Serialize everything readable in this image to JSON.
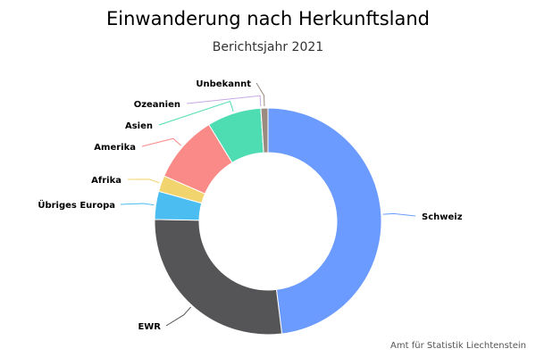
{
  "title": "Einwanderung nach Herkunftsland",
  "subtitle": "Berichtsjahr 2021",
  "source": "Amt für Statistik Liechtenstein",
  "chart_data": {
    "type": "pie",
    "donut": true,
    "title": "Einwanderung nach Herkunftsland",
    "subtitle": "Berichtsjahr 2021",
    "categories": [
      "Schweiz",
      "EWR",
      "Übriges Europa",
      "Afrika",
      "Amerika",
      "Asien",
      "Ozeanien",
      "Unbekannt"
    ],
    "values": [
      48.0,
      27.2,
      4.0,
      2.3,
      9.7,
      7.7,
      0.01,
      1.0
    ],
    "unit": "%",
    "colors": [
      "#6b9bff",
      "#555558",
      "#4cbdf0",
      "#f2d46e",
      "#fa8a87",
      "#4edcb3",
      "#c5a8e5",
      "#9a8a80"
    ],
    "legend": "none (labels with connector lines)"
  }
}
